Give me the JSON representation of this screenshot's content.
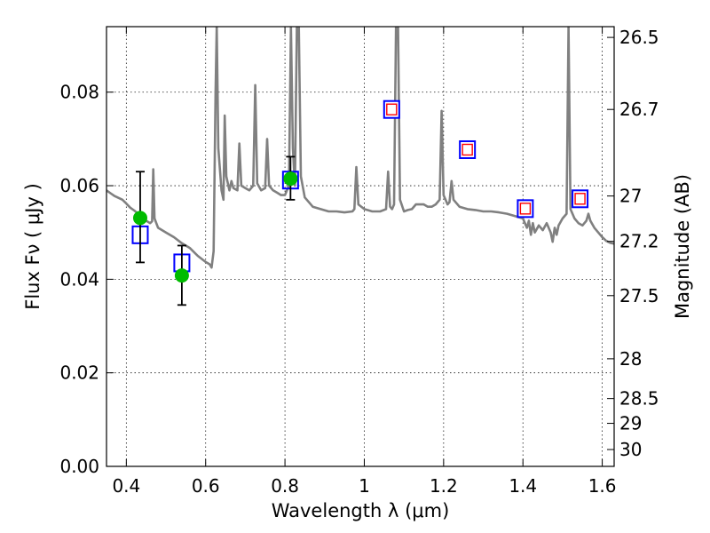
{
  "chart_data": {
    "type": "scatter",
    "xlabel": "Wavelength  λ (μm)",
    "ylabel": "Flux  Fν  ( μJy )",
    "ylabel_right": "Magnitude (AB)",
    "xlim": [
      0.35,
      1.63
    ],
    "ylim": [
      0.0,
      0.094
    ],
    "grid": true,
    "x_ticks": [
      0.4,
      0.6,
      0.8,
      1.0,
      1.2,
      1.4,
      1.6
    ],
    "x_tick_labels": [
      "0.4",
      "0.6",
      "0.8",
      "1",
      "1.2",
      "1.4",
      "1.6"
    ],
    "y_ticks": [
      0.0,
      0.02,
      0.04,
      0.06,
      0.08
    ],
    "y_tick_labels": [
      "0.00",
      "0.02",
      "0.04",
      "0.06",
      "0.08"
    ],
    "right_ticks": [
      {
        "label": "26.5",
        "flux": 0.0917
      },
      {
        "label": "26.7",
        "flux": 0.0763
      },
      {
        "label": "27",
        "flux": 0.0578
      },
      {
        "label": "27.2",
        "flux": 0.0481
      },
      {
        "label": "27.5",
        "flux": 0.0365
      },
      {
        "label": "28",
        "flux": 0.023
      },
      {
        "label": "28.5",
        "flux": 0.0145
      },
      {
        "label": "29",
        "flux": 0.0092
      },
      {
        "label": "30",
        "flux": 0.0036
      }
    ],
    "series": [
      {
        "kind": "spectrum",
        "color": "#808080",
        "points": [
          [
            0.35,
            0.059
          ],
          [
            0.36,
            0.0584
          ],
          [
            0.37,
            0.0578
          ],
          [
            0.38,
            0.0574
          ],
          [
            0.39,
            0.057
          ],
          [
            0.4,
            0.0562
          ],
          [
            0.41,
            0.0553
          ],
          [
            0.42,
            0.0547
          ],
          [
            0.43,
            0.054
          ],
          [
            0.44,
            0.0535
          ],
          [
            0.45,
            0.0525
          ],
          [
            0.46,
            0.052
          ],
          [
            0.465,
            0.0524
          ],
          [
            0.468,
            0.0635
          ],
          [
            0.471,
            0.053
          ],
          [
            0.48,
            0.051
          ],
          [
            0.5,
            0.05
          ],
          [
            0.52,
            0.049
          ],
          [
            0.54,
            0.0477
          ],
          [
            0.56,
            0.0467
          ],
          [
            0.58,
            0.045
          ],
          [
            0.6,
            0.0437
          ],
          [
            0.61,
            0.0432
          ],
          [
            0.615,
            0.0425
          ],
          [
            0.62,
            0.046
          ],
          [
            0.625,
            0.08
          ],
          [
            0.628,
            0.094
          ],
          [
            0.632,
            0.068
          ],
          [
            0.64,
            0.059
          ],
          [
            0.645,
            0.057
          ],
          [
            0.648,
            0.075
          ],
          [
            0.652,
            0.062
          ],
          [
            0.66,
            0.059
          ],
          [
            0.665,
            0.061
          ],
          [
            0.67,
            0.0595
          ],
          [
            0.68,
            0.059
          ],
          [
            0.685,
            0.069
          ],
          [
            0.69,
            0.06
          ],
          [
            0.7,
            0.0595
          ],
          [
            0.71,
            0.059
          ],
          [
            0.72,
            0.06
          ],
          [
            0.725,
            0.0815
          ],
          [
            0.73,
            0.0605
          ],
          [
            0.74,
            0.059
          ],
          [
            0.75,
            0.0595
          ],
          [
            0.755,
            0.07
          ],
          [
            0.76,
            0.06
          ],
          [
            0.77,
            0.059
          ],
          [
            0.78,
            0.0585
          ],
          [
            0.79,
            0.058
          ],
          [
            0.8,
            0.058
          ],
          [
            0.805,
            0.059
          ],
          [
            0.81,
            0.06
          ],
          [
            0.815,
            0.094
          ],
          [
            0.82,
            0.068
          ],
          [
            0.825,
            0.06
          ],
          [
            0.83,
            0.094
          ],
          [
            0.835,
            0.094
          ],
          [
            0.84,
            0.062
          ],
          [
            0.85,
            0.0575
          ],
          [
            0.87,
            0.0555
          ],
          [
            0.89,
            0.055
          ],
          [
            0.91,
            0.0545
          ],
          [
            0.93,
            0.0545
          ],
          [
            0.95,
            0.0543
          ],
          [
            0.97,
            0.0545
          ],
          [
            0.975,
            0.055
          ],
          [
            0.98,
            0.064
          ],
          [
            0.985,
            0.056
          ],
          [
            1.0,
            0.055
          ],
          [
            1.02,
            0.0545
          ],
          [
            1.04,
            0.0545
          ],
          [
            1.055,
            0.055
          ],
          [
            1.06,
            0.063
          ],
          [
            1.065,
            0.0555
          ],
          [
            1.07,
            0.055
          ],
          [
            1.075,
            0.056
          ],
          [
            1.08,
            0.094
          ],
          [
            1.085,
            0.094
          ],
          [
            1.09,
            0.057
          ],
          [
            1.1,
            0.0545
          ],
          [
            1.11,
            0.0548
          ],
          [
            1.12,
            0.055
          ],
          [
            1.13,
            0.056
          ],
          [
            1.14,
            0.056
          ],
          [
            1.15,
            0.056
          ],
          [
            1.16,
            0.0555
          ],
          [
            1.17,
            0.0555
          ],
          [
            1.18,
            0.056
          ],
          [
            1.19,
            0.057
          ],
          [
            1.195,
            0.076
          ],
          [
            1.2,
            0.058
          ],
          [
            1.21,
            0.056
          ],
          [
            1.215,
            0.0565
          ],
          [
            1.22,
            0.061
          ],
          [
            1.225,
            0.057
          ],
          [
            1.24,
            0.0555
          ],
          [
            1.26,
            0.055
          ],
          [
            1.28,
            0.0548
          ],
          [
            1.3,
            0.0545
          ],
          [
            1.32,
            0.0545
          ],
          [
            1.34,
            0.0543
          ],
          [
            1.36,
            0.054
          ],
          [
            1.38,
            0.0535
          ],
          [
            1.4,
            0.053
          ],
          [
            1.41,
            0.051
          ],
          [
            1.415,
            0.0525
          ],
          [
            1.42,
            0.0495
          ],
          [
            1.425,
            0.052
          ],
          [
            1.43,
            0.05
          ],
          [
            1.44,
            0.0515
          ],
          [
            1.45,
            0.0505
          ],
          [
            1.46,
            0.052
          ],
          [
            1.47,
            0.05
          ],
          [
            1.475,
            0.048
          ],
          [
            1.48,
            0.051
          ],
          [
            1.485,
            0.0495
          ],
          [
            1.49,
            0.0515
          ],
          [
            1.5,
            0.053
          ],
          [
            1.51,
            0.054
          ],
          [
            1.515,
            0.094
          ],
          [
            1.52,
            0.055
          ],
          [
            1.53,
            0.053
          ],
          [
            1.54,
            0.052
          ],
          [
            1.55,
            0.0515
          ],
          [
            1.56,
            0.0525
          ],
          [
            1.565,
            0.054
          ],
          [
            1.57,
            0.0525
          ],
          [
            1.58,
            0.051
          ],
          [
            1.59,
            0.05
          ],
          [
            1.6,
            0.049
          ],
          [
            1.61,
            0.0482
          ],
          [
            1.62,
            0.0478
          ],
          [
            1.63,
            0.0476
          ]
        ]
      },
      {
        "kind": "open-squares",
        "edge_color": "#0000ff",
        "points": [
          {
            "x": 0.435,
            "y": 0.0495
          },
          {
            "x": 0.54,
            "y": 0.0435
          },
          {
            "x": 0.814,
            "y": 0.0612
          }
        ]
      },
      {
        "kind": "double-squares",
        "outer_color": "#0000ff",
        "inner_color": "#ff0000",
        "points": [
          {
            "x": 1.069,
            "y": 0.0763
          },
          {
            "x": 1.26,
            "y": 0.0677
          },
          {
            "x": 1.406,
            "y": 0.0551
          },
          {
            "x": 1.544,
            "y": 0.0572
          }
        ]
      },
      {
        "kind": "filled-circles-with-errors",
        "color": "#00bb00",
        "points": [
          {
            "x": 0.435,
            "y": 0.0531,
            "err_low": 0.0436,
            "err_high": 0.063
          },
          {
            "x": 0.54,
            "y": 0.0408,
            "err_low": 0.0345,
            "err_high": 0.0472
          },
          {
            "x": 0.814,
            "y": 0.0615,
            "err_low": 0.057,
            "err_high": 0.0662
          }
        ]
      }
    ]
  }
}
